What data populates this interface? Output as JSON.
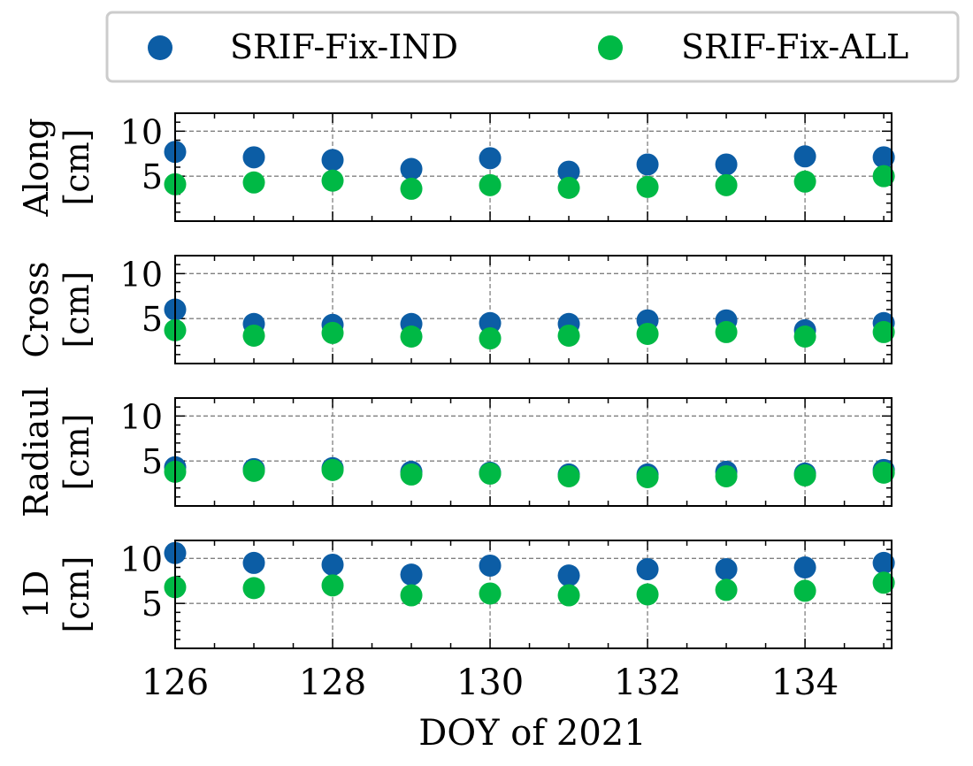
{
  "chart_data": {
    "type": "scatter",
    "legend": {
      "placement": "top",
      "columns": 2,
      "entries": [
        {
          "name": "SRIF-Fix-IND",
          "color": "#0C5DA5"
        },
        {
          "name": "SRIF-Fix-ALL",
          "color": "#00B945"
        }
      ]
    },
    "xlabel": "DOY of 2021",
    "xlim": [
      126,
      135.1
    ],
    "x_ticks": [
      126,
      128,
      130,
      132,
      134
    ],
    "x_tick_labels": [
      "126",
      "128",
      "130",
      "132",
      "134"
    ],
    "x_minor_step": 0.5,
    "ylim": [
      0,
      12
    ],
    "y_ticks": [
      5,
      10
    ],
    "y_tick_labels": [
      "5",
      "10"
    ],
    "y_minor_step": 1,
    "grid": true,
    "x": [
      126,
      127,
      128,
      129,
      130,
      131,
      132,
      133,
      134,
      135
    ],
    "panels": [
      {
        "ylabel_line1": "Along",
        "ylabel_line2": "[cm]",
        "series": [
          {
            "name": "SRIF-Fix-IND",
            "values": [
              7.7,
              7.1,
              6.8,
              5.8,
              7.0,
              5.5,
              6.3,
              6.3,
              7.2,
              7.1
            ]
          },
          {
            "name": "SRIF-Fix-ALL",
            "values": [
              4.1,
              4.3,
              4.5,
              3.6,
              4.0,
              3.7,
              3.8,
              4.0,
              4.4,
              5.0
            ]
          }
        ]
      },
      {
        "ylabel_line1": "Cross",
        "ylabel_line2": "[cm]",
        "series": [
          {
            "name": "SRIF-Fix-IND",
            "values": [
              6.0,
              4.4,
              4.3,
              4.4,
              4.5,
              4.4,
              4.8,
              4.8,
              3.7,
              4.5
            ]
          },
          {
            "name": "SRIF-Fix-ALL",
            "values": [
              3.7,
              3.1,
              3.4,
              3.0,
              2.8,
              3.1,
              3.3,
              3.5,
              3.0,
              3.5
            ]
          }
        ]
      },
      {
        "ylabel_line1": "Radiaul",
        "ylabel_line2": "[cm]",
        "series": [
          {
            "name": "SRIF-Fix-IND",
            "values": [
              4.3,
              4.1,
              4.2,
              3.8,
              3.7,
              3.5,
              3.5,
              3.8,
              3.6,
              4.0
            ]
          },
          {
            "name": "SRIF-Fix-ALL",
            "values": [
              3.8,
              3.9,
              4.0,
              3.5,
              3.6,
              3.3,
              3.2,
              3.3,
              3.4,
              3.7
            ]
          }
        ]
      },
      {
        "ylabel_line1": "1D",
        "ylabel_line2": "[cm]",
        "series": [
          {
            "name": "SRIF-Fix-IND",
            "values": [
              10.6,
              9.5,
              9.3,
              8.2,
              9.2,
              8.1,
              8.8,
              8.8,
              9.0,
              9.5
            ]
          },
          {
            "name": "SRIF-Fix-ALL",
            "values": [
              6.8,
              6.7,
              7.0,
              5.9,
              6.1,
              5.9,
              6.0,
              6.5,
              6.4,
              7.3
            ]
          }
        ]
      }
    ]
  }
}
